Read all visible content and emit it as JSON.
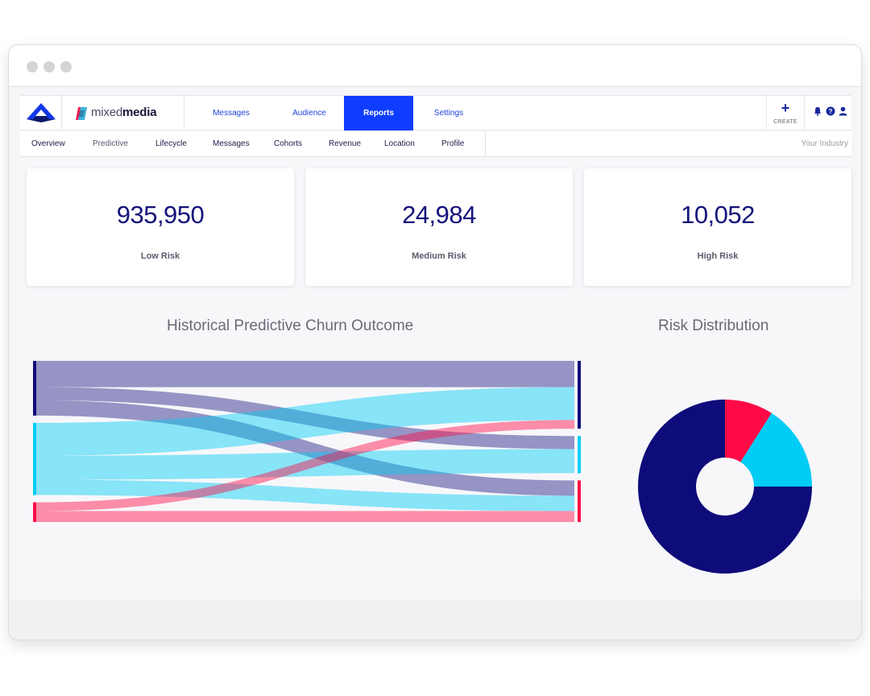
{
  "topnav": {
    "brand_light": "mixed",
    "brand_bold": "media",
    "tabs": [
      {
        "label": "Messages"
      },
      {
        "label": "Audience"
      },
      {
        "label": "Reports",
        "active": true
      },
      {
        "label": "Settings"
      }
    ],
    "create_label": "CREATE",
    "icons": [
      "bell-icon",
      "help-icon",
      "user-icon"
    ]
  },
  "subnav": {
    "tabs": [
      {
        "label": "Overview"
      },
      {
        "label": "Predictive"
      },
      {
        "label": "Lifecycle"
      },
      {
        "label": "Messages"
      },
      {
        "label": "Cohorts"
      },
      {
        "label": "Revenue"
      },
      {
        "label": "Location"
      },
      {
        "label": "Profile"
      }
    ],
    "industry": "Your Industry"
  },
  "cards": [
    {
      "value": "935,950",
      "label": "Low Risk"
    },
    {
      "value": "24,984",
      "label": "Medium Risk"
    },
    {
      "value": "10,052",
      "label": "High Risk"
    }
  ],
  "colors": {
    "low": "#0e0b7a",
    "medium": "#00cdf5",
    "high": "#ff0a47",
    "accent": "#0f3dff"
  },
  "chart_data": [
    {
      "type": "sankey",
      "title": "Historical Predictive Churn Outcome",
      "nodes_left": [
        "low",
        "medium",
        "high"
      ],
      "nodes_right": [
        "low",
        "medium",
        "high"
      ],
      "flows": [
        {
          "from": "medium",
          "to": "low",
          "value": 30
        },
        {
          "from": "medium",
          "to": "medium",
          "value": 22
        },
        {
          "from": "medium",
          "to": "high",
          "value": 14
        },
        {
          "from": "low",
          "to": "low",
          "value": 24
        },
        {
          "from": "low",
          "to": "medium",
          "value": 12
        },
        {
          "from": "low",
          "to": "high",
          "value": 14
        },
        {
          "from": "high",
          "to": "low",
          "value": 8
        },
        {
          "from": "high",
          "to": "high",
          "value": 10
        }
      ]
    },
    {
      "type": "pie",
      "title": "Risk Distribution",
      "slices": [
        {
          "key": "high",
          "value": 9
        },
        {
          "key": "medium",
          "value": 16
        },
        {
          "key": "low",
          "value": 75
        }
      ]
    }
  ]
}
